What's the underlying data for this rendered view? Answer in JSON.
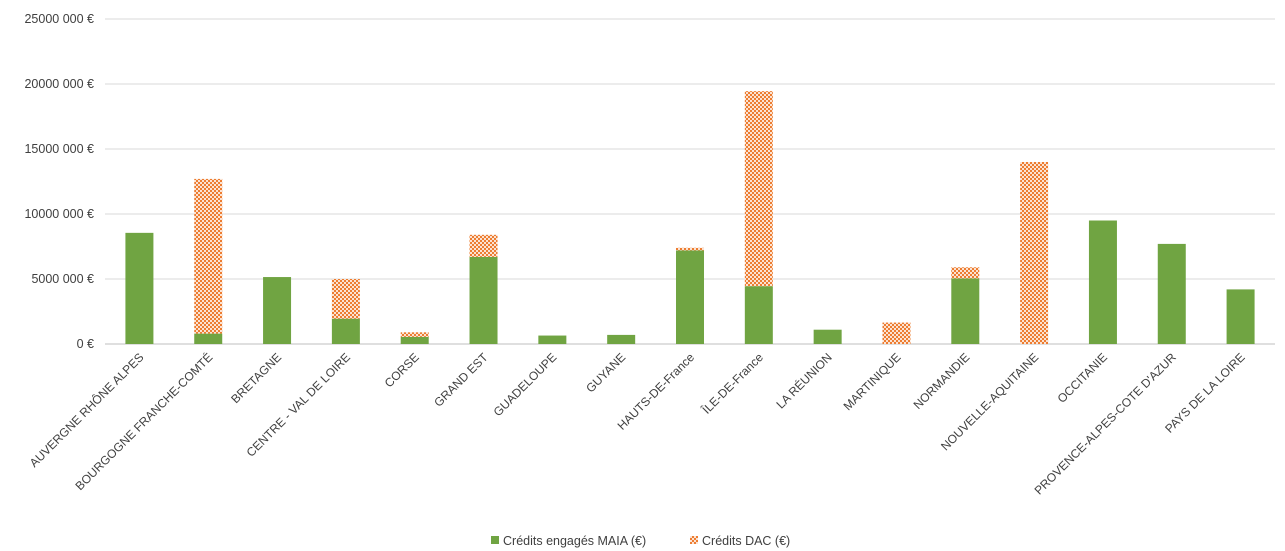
{
  "chart_data": {
    "type": "bar",
    "stacked": true,
    "categories": [
      "AUVERGNE RHÔNE ALPES",
      "BOURGOGNE FRANCHE-COMTÉ",
      "BRETAGNE",
      "CENTRE - VAL DE LOIRE",
      "CORSE",
      "GRAND EST",
      "GUADELOUPE",
      "GUYANE",
      "HAUTS-DE-France",
      "ÎLE-DE-France",
      "LA RÉUNION",
      "MARTINIQUE",
      "NORMANDIE",
      "NOUVELLE-AQUITAINE",
      "OCCITANIE",
      "PROVENCE-ALPES-COTE D'AZUR",
      "PAYS DE LA LOIRE"
    ],
    "series": [
      {
        "name": "Crédits engagés MAIA (€)",
        "color": "#70a442",
        "pattern": "solid",
        "values": [
          8550000,
          800000,
          5150000,
          1950000,
          550000,
          6700000,
          650000,
          700000,
          7200000,
          4450000,
          1100000,
          0,
          5050000,
          0,
          9500000,
          7700000,
          4200000
        ]
      },
      {
        "name": "Crédits  DAC (€)",
        "color": "#ed7d31",
        "pattern": "dotted",
        "values": [
          0,
          11900000,
          0,
          3050000,
          350000,
          1700000,
          0,
          0,
          200000,
          15000000,
          0,
          1650000,
          850000,
          14000000,
          0,
          0,
          0
        ]
      }
    ],
    "y_ticks": [
      {
        "value": 0,
        "label": "0 €"
      },
      {
        "value": 5000000,
        "label": "5000 000 €"
      },
      {
        "value": 10000000,
        "label": "10000 000 €"
      },
      {
        "value": 15000000,
        "label": "15000 000 €"
      },
      {
        "value": 20000000,
        "label": "20000 000 €"
      },
      {
        "value": 25000000,
        "label": "25000 000 €"
      }
    ],
    "ylim": [
      0,
      25000000
    ],
    "grid": true,
    "legend_position": "bottom"
  }
}
